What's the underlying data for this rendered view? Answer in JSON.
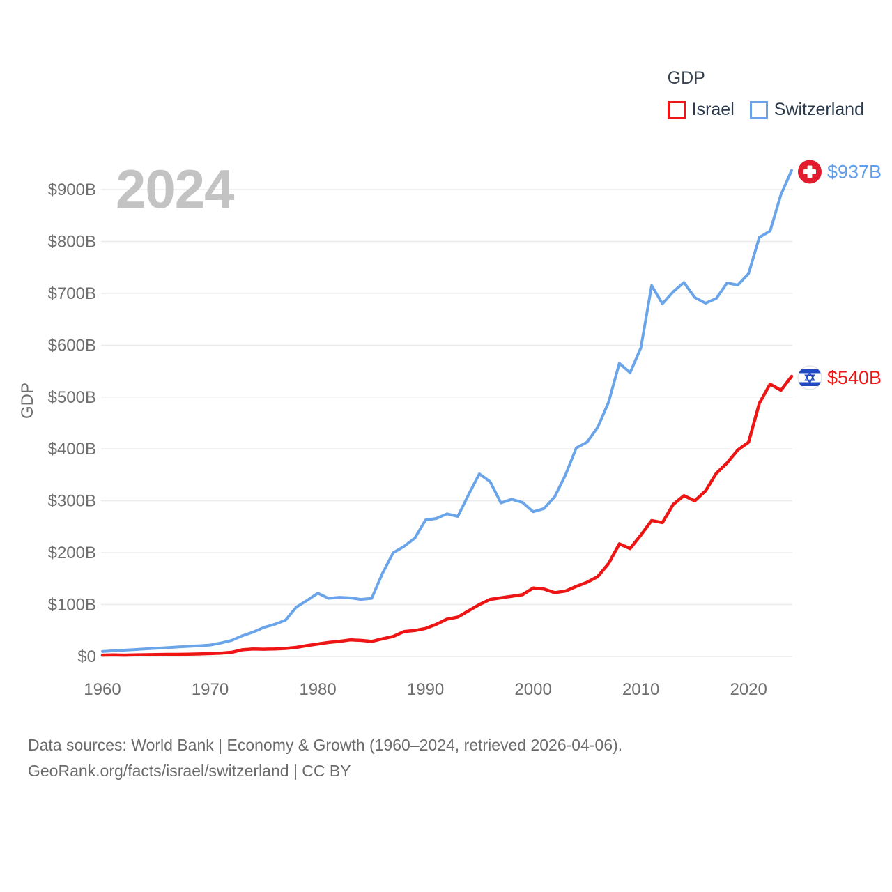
{
  "watermark": "2024",
  "legend": {
    "title": "GDP",
    "items": [
      {
        "label": "Israel",
        "color": "#ee1515"
      },
      {
        "label": "Switzerland",
        "color": "#6ba5e9"
      }
    ]
  },
  "y_axis": {
    "title": "GDP",
    "tick_labels": [
      "$0",
      "$100B",
      "$200B",
      "$300B",
      "$400B",
      "$500B",
      "$600B",
      "$700B",
      "$800B",
      "$900B"
    ]
  },
  "x_axis": {
    "tick_labels": [
      "1960",
      "1970",
      "1980",
      "1990",
      "2000",
      "2010",
      "2020"
    ]
  },
  "end_labels": [
    {
      "series": "Switzerland",
      "text": "$937B",
      "flag": "switzerland",
      "text_color": "#5f9de8"
    },
    {
      "series": "Israel",
      "text": "$540B",
      "flag": "israel",
      "text_color": "#ee1515"
    }
  ],
  "flag_colors": {
    "swiss_red": "#e31b2f",
    "israel_blue": "#2149c1"
  },
  "footer": {
    "line1": "Data sources: World Bank | Economy & Growth (1960–2024, retrieved 2026-04-06).",
    "line2": "GeoRank.org/facts/israel/switzerland | CC BY"
  },
  "chart_data": {
    "type": "line",
    "title": "GDP",
    "units": "USD billions (current US$)",
    "xlabel": "",
    "ylabel": "GDP",
    "x_range": [
      1960,
      2024
    ],
    "ylim": [
      0,
      950
    ],
    "y_tick_step": 100,
    "grid": true,
    "legend_position": "top-right",
    "x": [
      1960,
      1961,
      1962,
      1963,
      1964,
      1965,
      1966,
      1967,
      1968,
      1969,
      1970,
      1971,
      1972,
      1973,
      1974,
      1975,
      1976,
      1977,
      1978,
      1979,
      1980,
      1981,
      1982,
      1983,
      1984,
      1985,
      1986,
      1987,
      1988,
      1989,
      1990,
      1991,
      1992,
      1993,
      1994,
      1995,
      1996,
      1997,
      1998,
      1999,
      2000,
      2001,
      2002,
      2003,
      2004,
      2005,
      2006,
      2007,
      2008,
      2009,
      2010,
      2011,
      2012,
      2013,
      2014,
      2015,
      2016,
      2017,
      2018,
      2019,
      2020,
      2021,
      2022,
      2023,
      2024
    ],
    "series": [
      {
        "name": "Israel",
        "color": "#ee1515",
        "end_label": "$540B",
        "values": [
          2.6,
          3.1,
          2.6,
          3.0,
          3.4,
          3.7,
          4.0,
          4.1,
          4.4,
          4.9,
          5.6,
          6.4,
          8.0,
          13.0,
          14.5,
          14.0,
          14.5,
          15.5,
          17.5,
          21.0,
          24,
          27,
          29,
          32,
          31,
          29,
          34,
          38.5,
          48,
          50,
          54,
          62,
          72,
          76,
          88,
          100,
          110,
          113,
          116,
          119,
          132,
          130,
          123,
          126,
          135,
          143,
          154,
          179,
          217,
          208,
          234,
          262,
          258,
          293,
          310,
          300,
          319,
          353,
          373,
          398,
          413,
          488,
          525,
          513,
          540
        ]
      },
      {
        "name": "Switzerland",
        "color": "#6ba5e9",
        "end_label": "$937B",
        "values": [
          9.5,
          10.9,
          12.1,
          13.2,
          14.6,
          15.8,
          17.0,
          18.3,
          19.4,
          20.7,
          22,
          26,
          31,
          40,
          47,
          56,
          62,
          70,
          95,
          108,
          122,
          112,
          114,
          113,
          110,
          112,
          160,
          200,
          212,
          228,
          263,
          266,
          275,
          270,
          312,
          352,
          337,
          296,
          303,
          297,
          279,
          285,
          308,
          350,
          402,
          413,
          442,
          490,
          565,
          547,
          595,
          715,
          680,
          703,
          721,
          692,
          681,
          690,
          720,
          716,
          738,
          808,
          820,
          890,
          937
        ]
      }
    ]
  }
}
